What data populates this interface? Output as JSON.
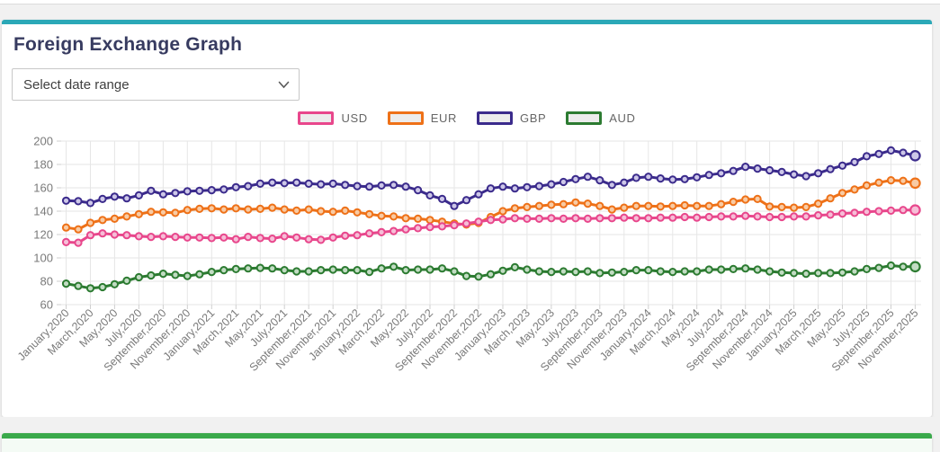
{
  "page": {
    "title": "Foreign Exchange Graph",
    "date_range_placeholder": "Select date range"
  },
  "colors": {
    "card_top_accent": "#2ba8b7",
    "bottom_card_accent": "#3aa94b",
    "title_text": "#373b60",
    "grid": "#e6e6e6",
    "tick": "#cfcfcf",
    "axis_text": "#7a7a7a",
    "legend_text": "#666666",
    "usd": "#e8478c",
    "eur": "#ee7118",
    "gbp": "#3b2b8c",
    "aud": "#2c7b31"
  },
  "chart_data": {
    "type": "line",
    "title": "Foreign Exchange Graph",
    "xlabel": "",
    "ylabel": "",
    "ylim": [
      60,
      200
    ],
    "y_ticks": [
      200,
      180,
      160,
      140,
      120,
      100,
      80,
      60
    ],
    "grid": true,
    "legend_position": "top",
    "x_tick_step": 2,
    "categories": [
      "January,2020",
      "February,2020",
      "March,2020",
      "April,2020",
      "May,2020",
      "June,2020",
      "July,2020",
      "August,2020",
      "September,2020",
      "October,2020",
      "November,2020",
      "December,2020",
      "January,2021",
      "February,2021",
      "March,2021",
      "April,2021",
      "May,2021",
      "June,2021",
      "July,2021",
      "August,2021",
      "September,2021",
      "October,2021",
      "November,2021",
      "December,2021",
      "January,2022",
      "February,2022",
      "March,2022",
      "April,2022",
      "May,2022",
      "June,2022",
      "July,2022",
      "August,2022",
      "September,2022",
      "October,2022",
      "November,2022",
      "December,2022",
      "January,2023",
      "February,2023",
      "March,2023",
      "April,2023",
      "May,2023",
      "June,2023",
      "July,2023",
      "August,2023",
      "September,2023",
      "October,2023",
      "November,2023",
      "December,2023",
      "January,2024",
      "February,2024",
      "March,2024",
      "April,2024",
      "May,2024",
      "June,2024",
      "July,2024",
      "August,2024",
      "September,2024",
      "October,2024",
      "November,2024",
      "December,2024",
      "January,2025",
      "February,2025",
      "March,2025",
      "April,2025",
      "May,2025",
      "June,2025",
      "July,2025",
      "August,2025",
      "September,2025",
      "October,2025",
      "November,2025"
    ],
    "series": [
      {
        "name": "AUD",
        "color": "#2c7b31",
        "point_fill": "#c2dcc3",
        "values": [
          78,
          76,
          74,
          75,
          77.5,
          80.5,
          83.5,
          85,
          86.5,
          85.5,
          84.5,
          86,
          88,
          89.5,
          90.5,
          91,
          91.5,
          91,
          89.5,
          88.5,
          88.5,
          89.5,
          90,
          89.5,
          89.5,
          88,
          91,
          92.5,
          89.5,
          90,
          90,
          91,
          88.5,
          84.5,
          84,
          86,
          89,
          92,
          90,
          88.5,
          88,
          88.5,
          88,
          88.5,
          87,
          87.5,
          88,
          89.5,
          89.5,
          88.5,
          88,
          88.5,
          88.5,
          90,
          90,
          90.5,
          91,
          90,
          88.5,
          87.5,
          87,
          86.5,
          87,
          87,
          87.5,
          88.5,
          90.5,
          91.5,
          93.5,
          92.5,
          92.5
        ]
      },
      {
        "name": "GBP",
        "color": "#3b2b8c",
        "point_fill": "#cdc7e8",
        "values": [
          149,
          148.5,
          147,
          150.5,
          152.5,
          151,
          153.5,
          157.5,
          154.5,
          155.5,
          157,
          157.5,
          158,
          158.5,
          160.5,
          161.5,
          163.5,
          164.5,
          164,
          164.5,
          163.5,
          163,
          163.5,
          162.5,
          161.5,
          161,
          162,
          162.5,
          161,
          158,
          153.5,
          150.5,
          144.5,
          149.5,
          154.5,
          159.5,
          161,
          159.5,
          160.5,
          161.5,
          163,
          165,
          167.5,
          169.5,
          166.5,
          162.5,
          164.5,
          168.5,
          169.5,
          168,
          167,
          167.5,
          169,
          171,
          172.5,
          174.5,
          178,
          176.5,
          175,
          173.5,
          171.5,
          170,
          172.5,
          176,
          179,
          182,
          187,
          189,
          192,
          190,
          187.5
        ]
      },
      {
        "name": "EUR",
        "color": "#ee7118",
        "point_fill": "#f8cba4",
        "values": [
          126,
          124.5,
          130,
          132.5,
          133.5,
          135.5,
          137.5,
          139.5,
          139,
          138.5,
          141,
          142,
          142.5,
          141.5,
          142.5,
          141.5,
          142,
          143,
          141.5,
          140.5,
          141.5,
          140,
          139.5,
          140.5,
          139,
          137.5,
          136,
          135.5,
          134,
          133.5,
          132.5,
          131,
          129.5,
          128.5,
          130,
          135,
          140,
          142.5,
          143.5,
          144.5,
          145.5,
          146,
          147.5,
          146.5,
          144.5,
          141.5,
          143,
          144.5,
          144.5,
          144,
          144.5,
          145,
          144.5,
          144.5,
          146,
          148,
          150,
          150.5,
          144,
          143.5,
          143,
          143.5,
          146.5,
          151,
          155.5,
          158.5,
          162,
          164.5,
          166.5,
          166,
          164
        ]
      },
      {
        "name": "USD",
        "color": "#e8478c",
        "point_fill": "#f6bed7",
        "values": [
          113.5,
          113,
          119.5,
          121,
          120,
          119.5,
          118.5,
          118,
          118.5,
          118,
          117.5,
          117.5,
          117,
          117.5,
          116,
          118,
          117,
          116.5,
          118.5,
          117.5,
          116,
          115.5,
          117.5,
          119,
          119.5,
          121,
          122,
          123,
          124.5,
          125.5,
          126.5,
          127,
          128,
          129.5,
          131,
          132.5,
          133,
          134,
          133.5,
          133.5,
          134,
          133.5,
          134,
          133.5,
          134,
          134,
          134.5,
          134,
          134,
          134.5,
          134.5,
          135,
          134.5,
          135,
          135.5,
          135.5,
          136,
          135.5,
          135,
          135,
          135.5,
          135.5,
          136.5,
          137,
          138,
          138.5,
          139.5,
          140,
          140.5,
          141,
          141
        ]
      }
    ],
    "legend_order": [
      "USD",
      "EUR",
      "GBP",
      "AUD"
    ]
  }
}
